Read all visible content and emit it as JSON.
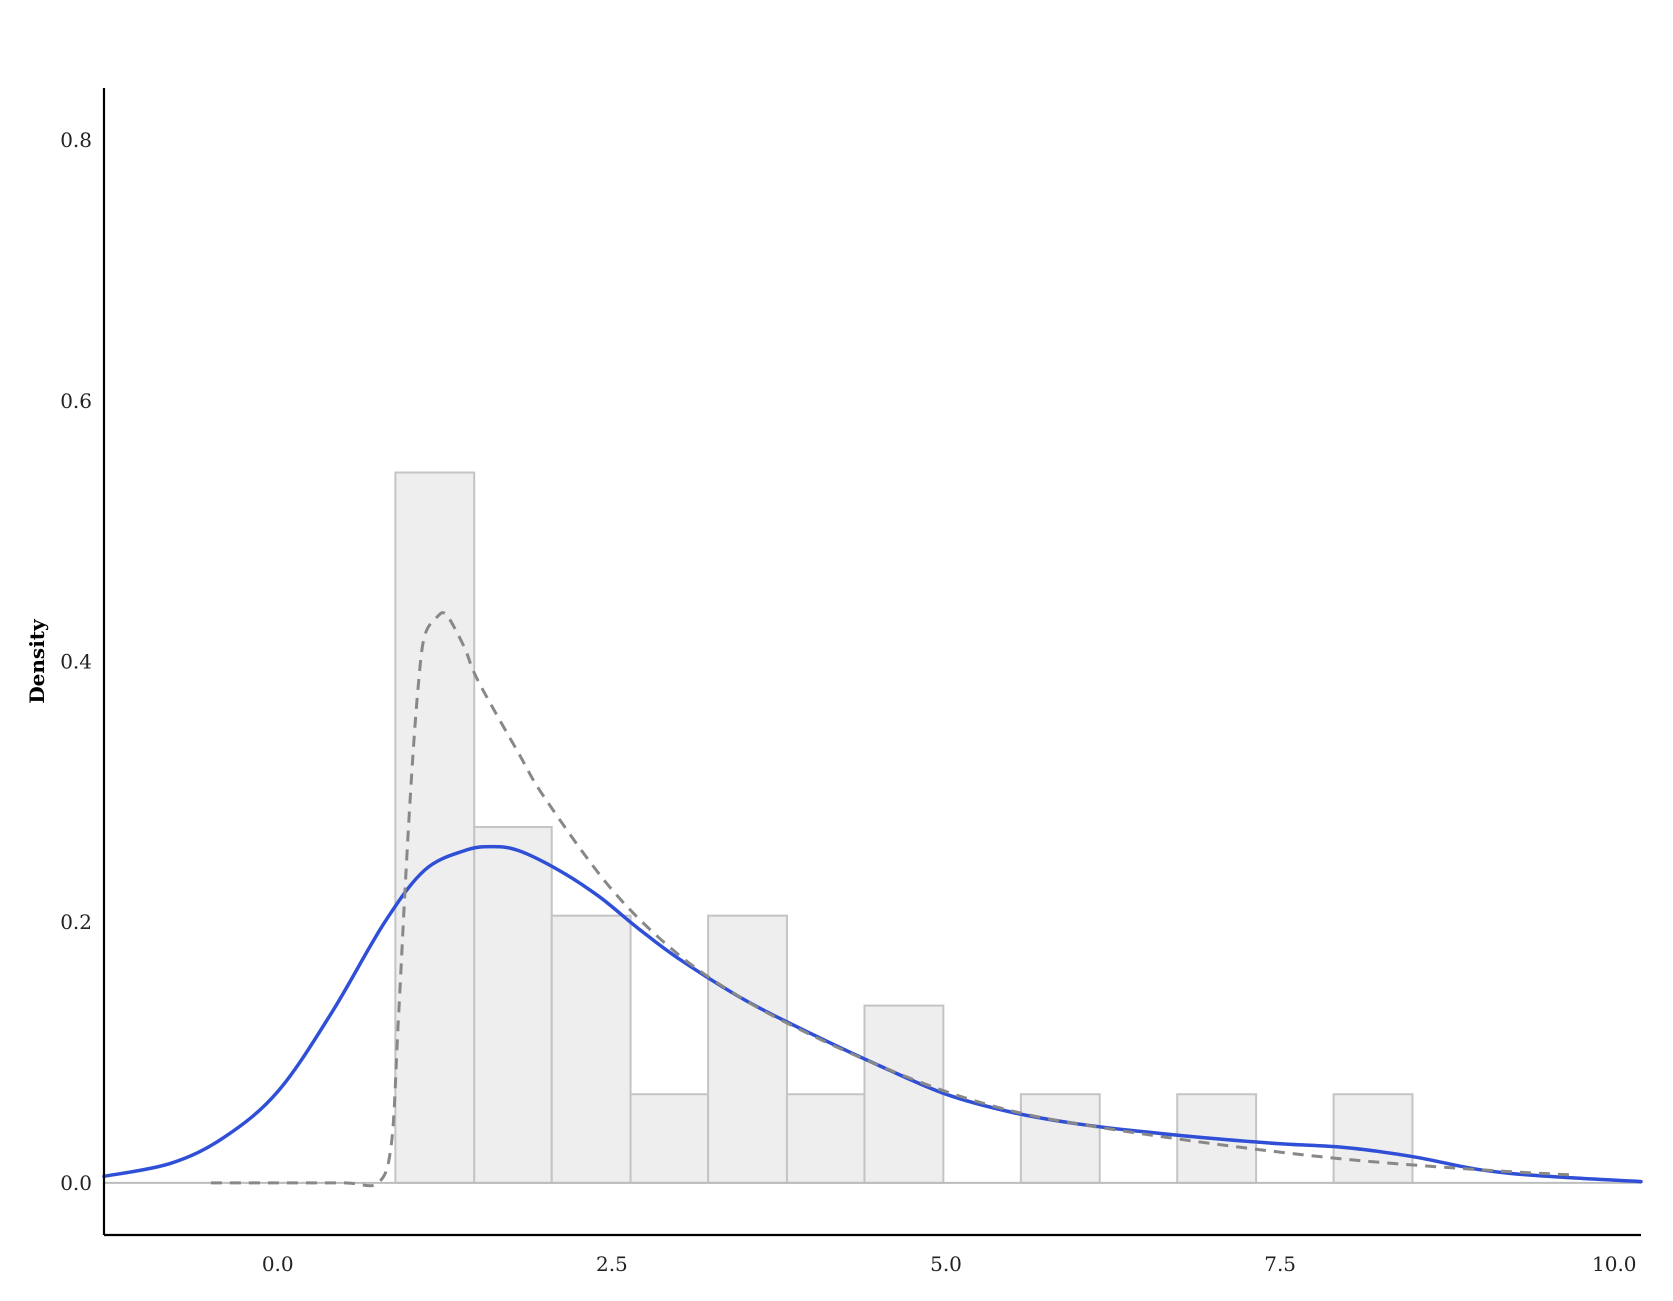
{
  "chart_data": {
    "type": "bar",
    "xlabel": "",
    "ylabel": "Density",
    "xlim": [
      -1.3,
      10.2
    ],
    "ylim": [
      -0.04,
      0.84
    ],
    "xticks": [
      "0.0",
      "2.5",
      "5.0",
      "7.5",
      "10.0"
    ],
    "yticks": [
      "0.0",
      "0.2",
      "0.4",
      "0.6",
      "0.8"
    ],
    "grid": false,
    "histogram": {
      "bins": [
        {
          "start": 0.88,
          "end": 1.47,
          "density": 0.545
        },
        {
          "start": 1.47,
          "end": 2.05,
          "density": 0.273
        },
        {
          "start": 2.05,
          "end": 2.64,
          "density": 0.205
        },
        {
          "start": 2.64,
          "end": 3.22,
          "density": 0.068
        },
        {
          "start": 3.22,
          "end": 3.81,
          "density": 0.205
        },
        {
          "start": 3.81,
          "end": 4.39,
          "density": 0.068
        },
        {
          "start": 4.39,
          "end": 4.98,
          "density": 0.136
        },
        {
          "start": 4.98,
          "end": 5.56,
          "density": 0.0
        },
        {
          "start": 5.56,
          "end": 6.15,
          "density": 0.068
        },
        {
          "start": 6.15,
          "end": 6.73,
          "density": 0.0
        },
        {
          "start": 6.73,
          "end": 7.32,
          "density": 0.068
        },
        {
          "start": 7.32,
          "end": 7.9,
          "density": 0.0
        },
        {
          "start": 7.9,
          "end": 8.49,
          "density": 0.068
        }
      ]
    },
    "series": [
      {
        "style": "solid",
        "x": [
          -1.3,
          -0.8,
          -0.4,
          0.0,
          0.4,
          0.8,
          1.1,
          1.4,
          1.6,
          1.8,
          2.1,
          2.4,
          2.7,
          3.0,
          3.5,
          4.0,
          4.5,
          5.0,
          5.5,
          6.0,
          6.5,
          7.0,
          7.5,
          8.0,
          8.5,
          9.0,
          9.5,
          10.2
        ],
        "y": [
          0.005,
          0.015,
          0.035,
          0.07,
          0.13,
          0.2,
          0.24,
          0.255,
          0.258,
          0.255,
          0.24,
          0.22,
          0.195,
          0.172,
          0.14,
          0.114,
          0.09,
          0.068,
          0.054,
          0.045,
          0.039,
          0.034,
          0.03,
          0.027,
          0.02,
          0.01,
          0.005,
          0.001
        ]
      },
      {
        "style": "dashed",
        "x": [
          -0.5,
          0.0,
          0.5,
          0.75,
          0.85,
          0.9,
          0.95,
          1.0,
          1.05,
          1.1,
          1.2,
          1.25,
          1.3,
          1.4,
          1.5,
          1.8,
          2.0,
          2.5,
          3.0,
          3.5,
          4.0,
          4.5,
          5.0,
          5.5,
          6.0,
          7.0,
          8.0,
          9.0,
          9.7
        ],
        "y": [
          0.0,
          0.0,
          0.0,
          0.0,
          0.03,
          0.12,
          0.22,
          0.31,
          0.38,
          0.42,
          0.435,
          0.437,
          0.43,
          0.41,
          0.385,
          0.33,
          0.295,
          0.225,
          0.175,
          0.14,
          0.113,
          0.09,
          0.07,
          0.055,
          0.045,
          0.03,
          0.018,
          0.01,
          0.006
        ]
      }
    ],
    "colors": {
      "bar_fill": "#eeeeee",
      "bar_stroke": "#c4c4c4",
      "kde": "#2f4fd6",
      "fit": "#888888"
    }
  }
}
